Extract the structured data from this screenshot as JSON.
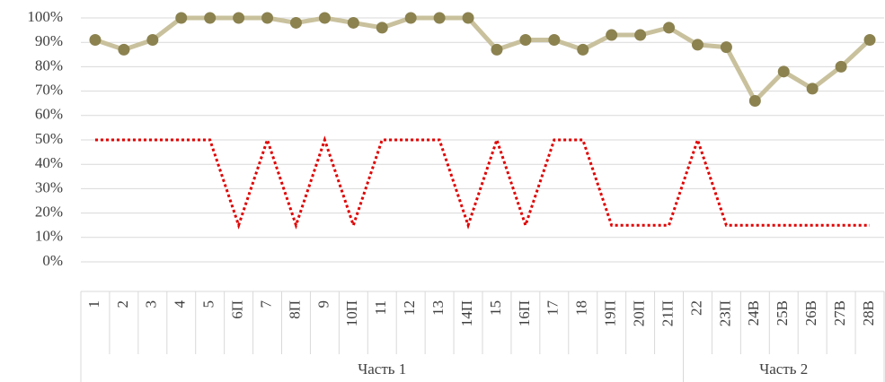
{
  "chart_data": {
    "type": "line",
    "categories": [
      "1",
      "2",
      "3",
      "4",
      "5",
      "6П",
      "7",
      "8П",
      "9",
      "10П",
      "11",
      "12",
      "13",
      "14П",
      "15",
      "16П",
      "17",
      "18",
      "19П",
      "20П",
      "21П",
      "22",
      "23П",
      "24В",
      "25В",
      "26В",
      "27В",
      "28В"
    ],
    "groups": [
      {
        "name": "Часть 1",
        "span": 21
      },
      {
        "name": "Часть 2",
        "span": 7
      }
    ],
    "series": [
      {
        "color": "#8b8250",
        "values": [
          91,
          87,
          91,
          100,
          100,
          100,
          100,
          98,
          100,
          98,
          96,
          100,
          100,
          100,
          87,
          91,
          91,
          87,
          93,
          93,
          96,
          89,
          88,
          66,
          78,
          71,
          80,
          91
        ]
      },
      {
        "color": "#e00000",
        "values": [
          50,
          50,
          50,
          50,
          50,
          15,
          50,
          15,
          50,
          15,
          50,
          50,
          50,
          15,
          50,
          15,
          50,
          50,
          15,
          15,
          15,
          50,
          15,
          15,
          15,
          15,
          15,
          15
        ]
      }
    ],
    "ylim": [
      0,
      100
    ],
    "yticks": [
      {
        "value": 0,
        "label": "0%"
      },
      {
        "value": 10,
        "label": "10%"
      },
      {
        "value": 20,
        "label": "20%"
      },
      {
        "value": 30,
        "label": "30%"
      },
      {
        "value": 40,
        "label": "40%"
      },
      {
        "value": 50,
        "label": "50%"
      },
      {
        "value": 60,
        "label": "60%"
      },
      {
        "value": 70,
        "label": "70%"
      },
      {
        "value": 80,
        "label": "80%"
      },
      {
        "value": 90,
        "label": "90%"
      },
      {
        "value": 100,
        "label": "100%"
      }
    ],
    "grid": true
  }
}
